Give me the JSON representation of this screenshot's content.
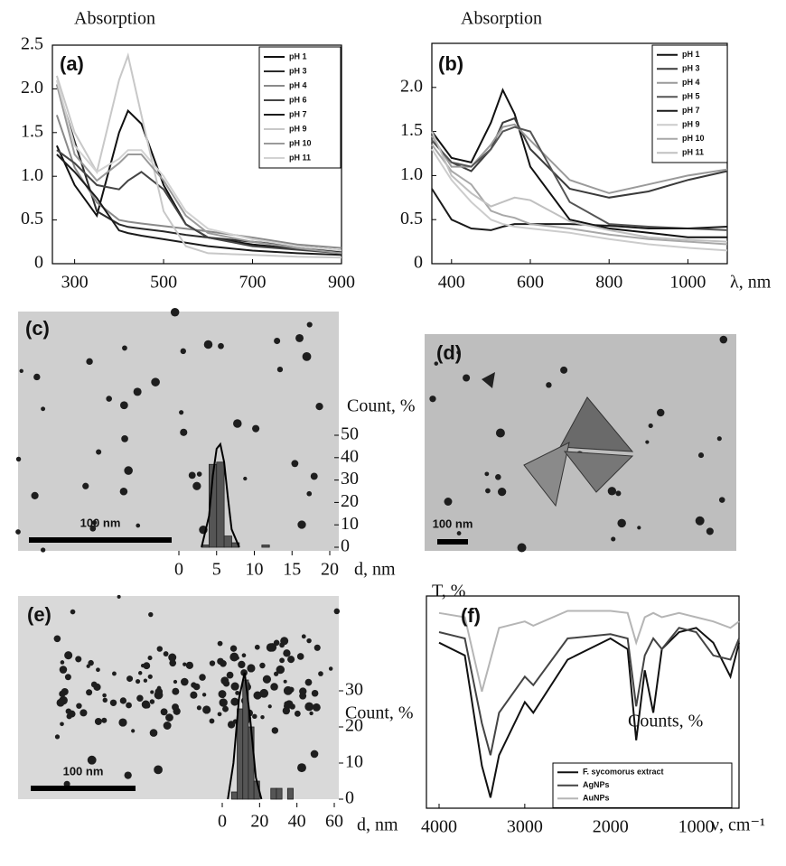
{
  "chart_data": [
    {
      "type": "line",
      "panel_label": "(a)",
      "y_label": "Absorption",
      "x": [
        260,
        300,
        350,
        400,
        420,
        450,
        500,
        550,
        600,
        700,
        800,
        900
      ],
      "xlim": [
        250,
        900
      ],
      "xticks": [
        300,
        500,
        700,
        900
      ],
      "ylim": [
        0,
        2.5
      ],
      "yticks": [
        0,
        0.5,
        {
          "value": 1,
          "label": "1.0"
        },
        1.5,
        {
          "value": 2,
          "label": "2.0"
        },
        2.5
      ],
      "series": [
        {
          "name": "pH 1",
          "color": "#111111",
          "values": [
            1.35,
            0.9,
            0.55,
            1.5,
            1.75,
            1.6,
            0.9,
            0.45,
            0.3,
            0.22,
            0.17,
            0.14
          ]
        },
        {
          "name": "pH 3",
          "color": "#2a2a2a",
          "values": [
            2.05,
            1.4,
            0.6,
            0.45,
            0.42,
            0.4,
            0.37,
            0.33,
            0.3,
            0.25,
            0.2,
            0.15
          ]
        },
        {
          "name": "pH 4",
          "color": "#8a8a8a",
          "values": [
            1.7,
            1.1,
            0.7,
            0.5,
            0.48,
            0.46,
            0.43,
            0.4,
            0.37,
            0.3,
            0.22,
            0.18
          ]
        },
        {
          "name": "pH 6",
          "color": "#444444",
          "values": [
            1.3,
            1.15,
            0.9,
            0.85,
            0.95,
            1.05,
            0.85,
            0.45,
            0.3,
            0.2,
            0.16,
            0.12
          ]
        },
        {
          "name": "pH 7",
          "color": "#1c1c1c",
          "values": [
            1.25,
            1.05,
            0.75,
            0.38,
            0.35,
            0.32,
            0.28,
            0.24,
            0.2,
            0.15,
            0.12,
            0.1
          ]
        },
        {
          "name": "pH 9",
          "color": "#c8c8c8",
          "values": [
            2.15,
            1.5,
            1.05,
            2.1,
            2.38,
            1.7,
            0.6,
            0.2,
            0.12,
            0.1,
            0.08,
            0.07
          ]
        },
        {
          "name": "pH 10",
          "color": "#9a9a9a",
          "values": [
            2.05,
            1.25,
            0.95,
            1.15,
            1.25,
            1.25,
            0.95,
            0.55,
            0.35,
            0.25,
            0.18,
            0.12
          ]
        },
        {
          "name": "pH 11",
          "color": "#d2d2d2",
          "values": [
            2.1,
            1.35,
            1.05,
            1.2,
            1.3,
            1.3,
            1.0,
            0.6,
            0.4,
            0.28,
            0.2,
            0.15
          ]
        }
      ]
    },
    {
      "type": "line",
      "panel_label": "(b)",
      "y_label": "Absorption",
      "x_label": "λ, nm",
      "x": [
        350,
        400,
        450,
        500,
        530,
        560,
        600,
        700,
        800,
        900,
        1000,
        1100
      ],
      "xlim": [
        350,
        1100
      ],
      "xticks": [
        400,
        600,
        800,
        1000
      ],
      "ylim": [
        0,
        2.5
      ],
      "yticks": [
        0,
        0.5,
        {
          "value": 1,
          "label": "1.0"
        },
        1.5,
        {
          "value": 2,
          "label": "2.0"
        }
      ],
      "series": [
        {
          "name": "pH 1",
          "color": "#111111",
          "values": [
            1.5,
            1.2,
            1.15,
            1.6,
            1.97,
            1.7,
            1.1,
            0.5,
            0.4,
            0.35,
            0.3,
            0.3
          ]
        },
        {
          "name": "pH 3",
          "color": "#3a3a3a",
          "values": [
            1.4,
            1.15,
            1.05,
            1.3,
            1.6,
            1.65,
            1.3,
            0.85,
            0.75,
            0.82,
            0.95,
            1.05
          ]
        },
        {
          "name": "pH 4",
          "color": "#9a9a9a",
          "values": [
            1.45,
            1.1,
            1.1,
            1.35,
            1.55,
            1.58,
            1.4,
            0.95,
            0.8,
            0.9,
            1.0,
            1.07
          ]
        },
        {
          "name": "pH 5",
          "color": "#555555",
          "values": [
            1.4,
            1.15,
            1.1,
            1.3,
            1.5,
            1.55,
            1.5,
            0.7,
            0.45,
            0.42,
            0.4,
            0.38
          ]
        },
        {
          "name": "pH 7",
          "color": "#1a1a1a",
          "values": [
            0.85,
            0.5,
            0.4,
            0.38,
            0.42,
            0.45,
            0.45,
            0.45,
            0.43,
            0.4,
            0.4,
            0.42
          ]
        },
        {
          "name": "pH 9",
          "color": "#cccccc",
          "values": [
            1.3,
            0.95,
            0.7,
            0.5,
            0.45,
            0.42,
            0.4,
            0.35,
            0.28,
            0.22,
            0.18,
            0.15
          ]
        },
        {
          "name": "pH 10",
          "color": "#a8a8a8",
          "values": [
            1.35,
            1.05,
            0.9,
            0.6,
            0.55,
            0.52,
            0.45,
            0.4,
            0.33,
            0.28,
            0.25,
            0.22
          ]
        },
        {
          "name": "pH 11",
          "color": "#c0c0c0",
          "values": [
            1.5,
            1.0,
            0.8,
            0.65,
            0.7,
            0.75,
            0.72,
            0.48,
            0.38,
            0.3,
            0.27,
            0.25
          ]
        }
      ]
    },
    {
      "type": "histogram",
      "panel_label": "(c)",
      "scale_label": "100 nm",
      "y_label": "Count, %",
      "x_label": "d, nm",
      "bins": [
        3,
        4,
        5,
        6,
        7,
        8,
        9,
        10,
        11,
        12
      ],
      "counts": [
        1,
        37,
        38,
        5,
        2,
        0,
        0,
        0,
        1
      ],
      "fit": {
        "x": [
          3,
          4,
          4.5,
          5,
          5.5,
          6,
          6.5,
          7,
          8
        ],
        "values": [
          0,
          14,
          32,
          44,
          46,
          38,
          22,
          8,
          0
        ]
      },
      "xlim": [
        0,
        20
      ],
      "xticks": [
        0,
        5,
        10,
        15,
        20
      ],
      "ylim": [
        0,
        50
      ],
      "yticks": [
        0,
        10,
        20,
        30,
        40,
        50
      ]
    },
    {
      "type": "image",
      "panel_label": "(d)",
      "scale_label": "100 nm"
    },
    {
      "type": "histogram",
      "panel_label": "(e)",
      "scale_label": "100 nm",
      "y_label": "Count, %",
      "x_label": "d, nm",
      "bins": [
        5,
        8,
        11,
        14,
        17,
        20,
        23,
        26,
        29,
        32,
        35,
        38
      ],
      "counts": [
        2,
        25,
        33,
        20,
        5,
        0,
        0,
        3,
        3,
        0,
        3
      ],
      "fit": {
        "x": [
          3,
          6,
          9,
          12,
          15,
          18,
          21
        ],
        "values": [
          0,
          10,
          28,
          35,
          22,
          6,
          0
        ]
      },
      "xlim": [
        0,
        60
      ],
      "xticks": [
        0,
        20,
        40,
        60
      ],
      "ylim": [
        0,
        35
      ],
      "yticks": [
        0,
        10,
        20,
        30
      ]
    },
    {
      "type": "line",
      "panel_label": "(f)",
      "y_label": "T, %",
      "x_label": "ν, cm⁻¹",
      "annotation": "Counts, %",
      "x": [
        4000,
        3700,
        3500,
        3400,
        3300,
        3000,
        2900,
        2500,
        2000,
        1800,
        1700,
        1600,
        1500,
        1400,
        1200,
        1000,
        800,
        600,
        500
      ],
      "xlim": [
        4000,
        500
      ],
      "xticks": [
        4000,
        3000,
        2000,
        1000
      ],
      "ylim": [
        0,
        100
      ],
      "yticks": [],
      "series": [
        {
          "name": "F. sycomorus extract",
          "color": "#111111",
          "values": [
            78,
            72,
            20,
            5,
            25,
            50,
            45,
            70,
            80,
            75,
            32,
            65,
            45,
            75,
            83,
            85,
            78,
            62,
            78
          ]
        },
        {
          "name": "AgNPs",
          "color": "#444444",
          "values": [
            83,
            80,
            40,
            25,
            45,
            62,
            58,
            80,
            82,
            80,
            48,
            72,
            80,
            75,
            85,
            83,
            72,
            70,
            80
          ]
        },
        {
          "name": "AuNPs",
          "color": "#b5b5b5",
          "values": [
            92,
            90,
            55,
            70,
            85,
            88,
            86,
            93,
            93,
            92,
            78,
            90,
            92,
            90,
            92,
            90,
            88,
            85,
            88
          ]
        }
      ]
    }
  ]
}
